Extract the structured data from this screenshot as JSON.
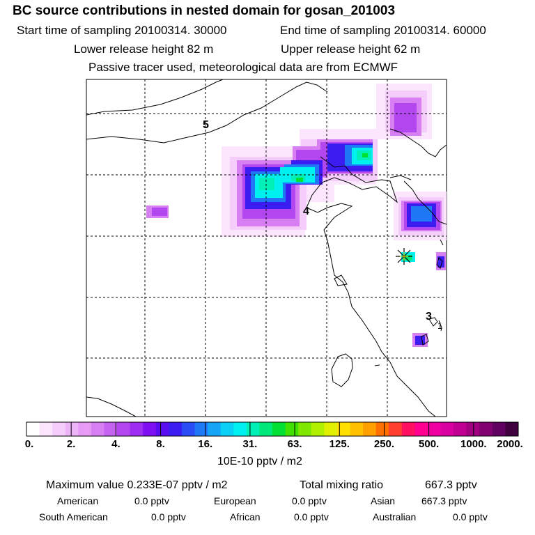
{
  "title": "BC  source contributions in nested domain for gosan_201003",
  "sampling": {
    "start": "Start time of sampling 20100314. 30000",
    "end": "End time of sampling 20100314. 60000"
  },
  "release": {
    "lower": "Lower release height   82 m",
    "upper": "Upper release height   62 m"
  },
  "tracer_note": "Passive tracer used, meteorological data are from ECMWF",
  "map": {
    "region_labels": [
      "5",
      "4",
      "3",
      "1"
    ],
    "receptor_marker": "gosan-receptor-star"
  },
  "colorbar": {
    "colors": [
      "#ffffff",
      "#fbe6fd",
      "#f5cdfb",
      "#eeb4f8",
      "#e79af6",
      "#d77ef3",
      "#c563f1",
      "#b247f0",
      "#9d2df1",
      "#7e10f1",
      "#5a0df1",
      "#3b1cf1",
      "#2a4cf4",
      "#1f78f6",
      "#16a4f7",
      "#0ad0f6",
      "#00f0f0",
      "#00f0b8",
      "#00e878",
      "#00e030",
      "#40e000",
      "#80e800",
      "#b0f000",
      "#e0f000",
      "#ffe000",
      "#ffc000",
      "#ffa000",
      "#ff7000",
      "#ff4030",
      "#ff1060",
      "#ff0090",
      "#f000a0",
      "#d800a0",
      "#c00090",
      "#a00080",
      "#800070",
      "#600060",
      "#400040"
    ],
    "labels": [
      "0.",
      "2.",
      "4.",
      "8.",
      "16.",
      "31.",
      "63.",
      "125.",
      "250.",
      "500.",
      "1000.",
      "2000."
    ],
    "unit": "10E-10 pptv / m2"
  },
  "summary": {
    "maximum": "Maximum value  0.233E-07 pptv / m2",
    "total_label": "Total mixing ratio",
    "total_value": "667.3 pptv",
    "row1": [
      {
        "label": "American",
        "value": "0.0 pptv"
      },
      {
        "label": "European",
        "value": "0.0 pptv"
      },
      {
        "label": "Asian",
        "value": "667.3 pptv"
      }
    ],
    "row2": [
      {
        "label": "South American",
        "value": "0.0 pptv"
      },
      {
        "label": "African",
        "value": "0.0 pptv"
      },
      {
        "label": "Australian",
        "value": "0.0 pptv"
      }
    ]
  }
}
